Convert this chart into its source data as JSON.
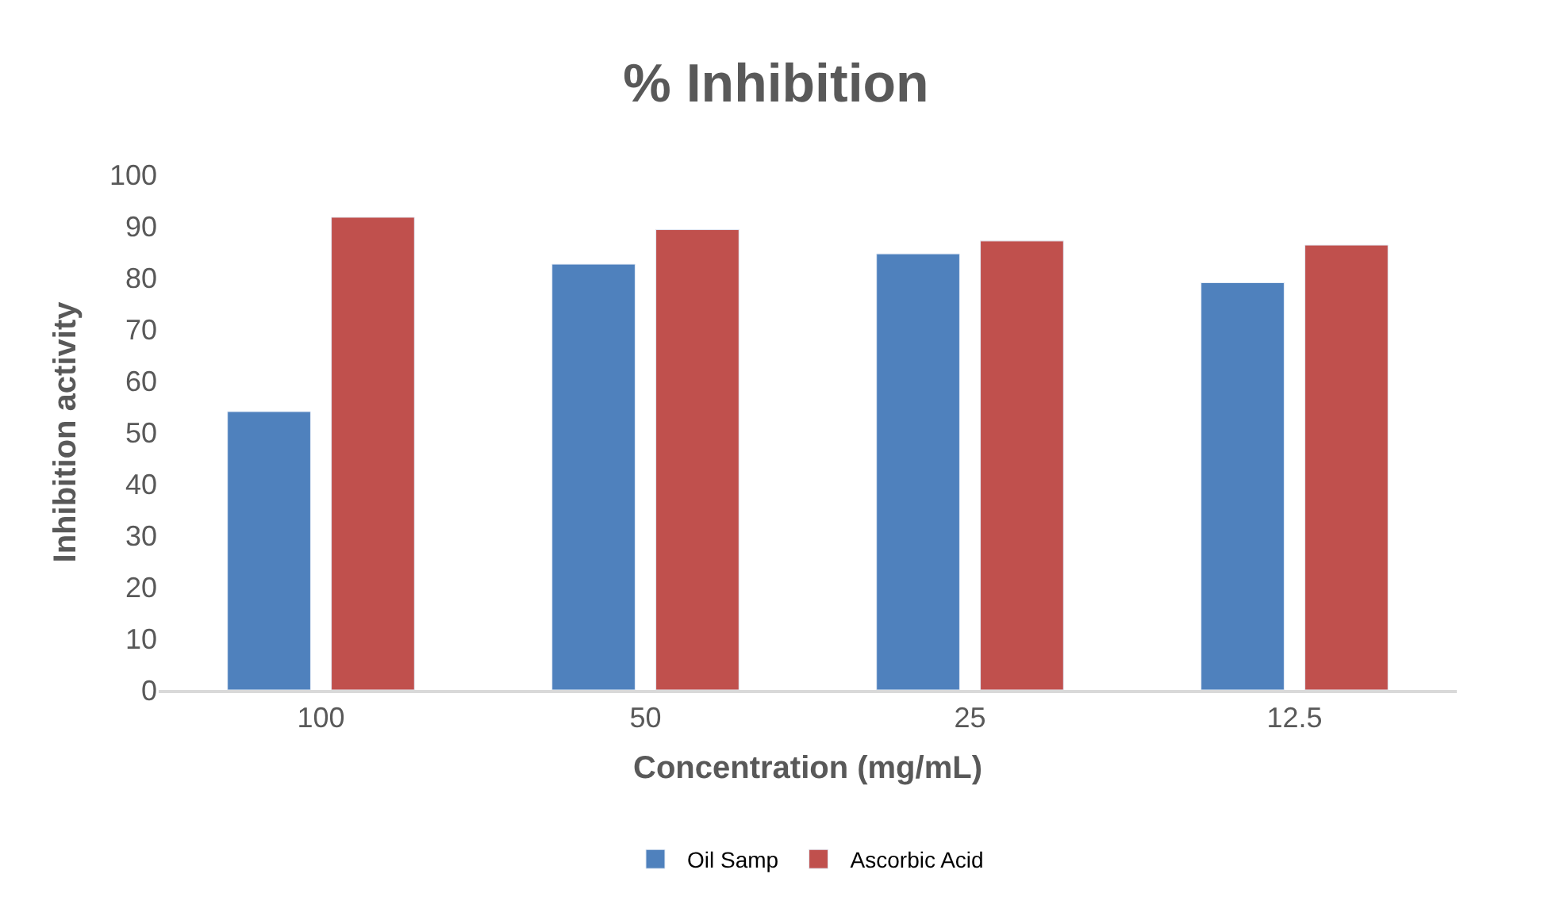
{
  "chart_data": {
    "type": "bar",
    "title": "% Inhibition",
    "xlabel": "Concentration (mg/mL)",
    "ylabel": "Inhibition activity",
    "categories": [
      "100",
      "50",
      "25",
      "12.5"
    ],
    "series": [
      {
        "name": "Oil Samp",
        "color": "#4f81bd",
        "values": [
          54.0,
          82.6,
          84.6,
          79.0
        ]
      },
      {
        "name": "Ascorbic Acid",
        "color": "#c0504d",
        "values": [
          91.7,
          89.3,
          87.1,
          86.3
        ]
      }
    ],
    "ylim": [
      0,
      100
    ],
    "yticks": [
      0,
      10,
      20,
      30,
      40,
      50,
      60,
      70,
      80,
      90,
      100
    ],
    "grid": false,
    "legend": "bottom"
  }
}
